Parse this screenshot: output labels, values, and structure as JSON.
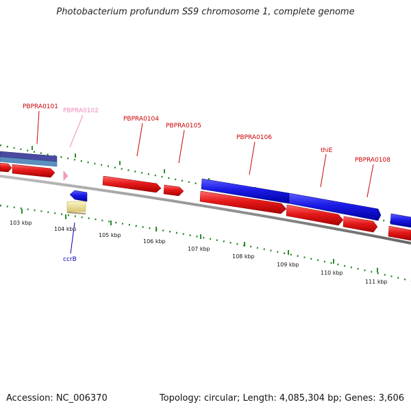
{
  "title": "Photobacterium profundum SS9 chromosome 1, complete genome",
  "accession": "Accession: NC_006370",
  "summary": "Topology: circular; Length: 4,085,304 bp; Genes: 3,606",
  "tick_labels": [
    "103 kbp",
    "104 kbp",
    "105 kbp",
    "106 kbp",
    "107 kbp",
    "108 kbp",
    "109 kbp",
    "110 kbp",
    "111 kbp"
  ],
  "gene_labels": [
    {
      "name": "PBPRA0101",
      "color": "#cc0000"
    },
    {
      "name": "PBPRA0102",
      "color": "#ee88bb"
    },
    {
      "name": "PBPRA0104",
      "color": "#cc0000"
    },
    {
      "name": "PBPRA0105",
      "color": "#cc0000"
    },
    {
      "name": "PBPRA0106",
      "color": "#cc0000"
    },
    {
      "name": "thiE",
      "color": "#cc0000"
    },
    {
      "name": "PBPRA0108",
      "color": "#cc0000"
    },
    {
      "name": "ccrB",
      "color": "#0000aa"
    }
  ],
  "colors": {
    "cds": "#e51919",
    "gene": "#1a1ae6",
    "rrna": "#f2e29b",
    "misc": "#6b6bb8",
    "backbone": "#888888",
    "tick": "#2a8a2a"
  }
}
